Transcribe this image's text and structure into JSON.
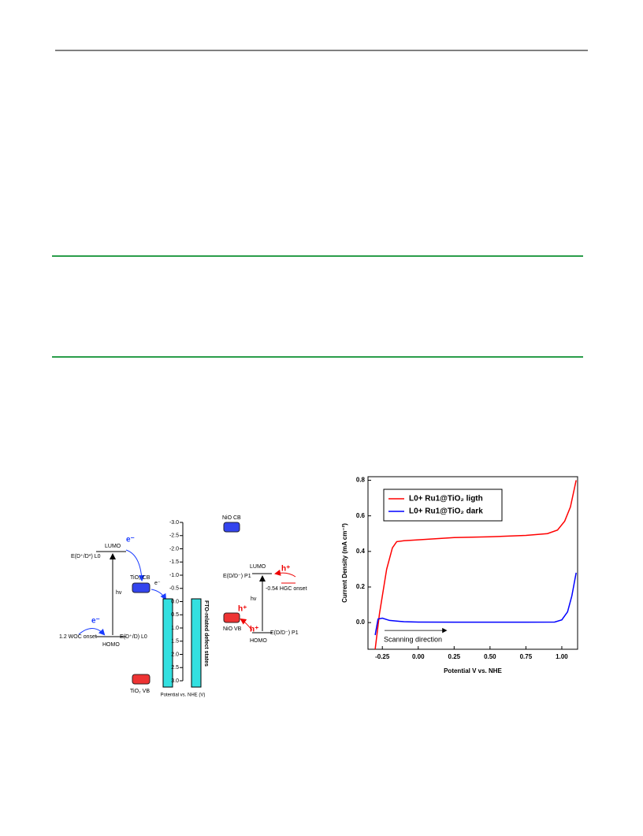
{
  "diagram": {
    "scale": {
      "ticks": [
        -3.0,
        -2.5,
        -2.0,
        -1.5,
        -1.0,
        -0.5,
        0.0,
        0.5,
        1.0,
        1.5,
        2.0,
        2.5,
        3.0
      ],
      "tick_labels": [
        "-3.0",
        "-2.5",
        "-2.0",
        "-1.5",
        "-1.0",
        "-0.5",
        "0.0",
        "0.5",
        "1.0",
        "1.5",
        "2.0",
        "2.5",
        "3.0"
      ],
      "lim": [
        -3.0,
        3.0
      ],
      "label": "Potential vs. NHE (V)"
    },
    "labels": [
      "E(D⁺/D*) L0",
      "LUMO",
      "hv",
      "HOMO",
      "E(D⁺/D) L0",
      "1.2 WOC onset",
      "e⁻",
      "e⁻",
      "TiO₂ CB",
      "e⁻",
      "TiO₂ VB",
      "NiO CB",
      "NiO VB",
      "h⁺",
      "h⁺",
      "h⁺",
      "LUMO",
      "E(D/D⁻) P1",
      "-0.54 HGC onset",
      "hv",
      "E(D/D⁻) P1",
      "HOMO",
      "FTO-related defect states"
    ]
  },
  "chart_data": {
    "type": "line",
    "xlabel": "Potential V vs. NHE",
    "ylabel": "Current Density (mA cm⁻²)",
    "xlim": [
      -0.35,
      1.11
    ],
    "ylim": [
      -0.15,
      0.82
    ],
    "xticks": [
      {
        "value": -0.25,
        "label": "-0.25"
      },
      {
        "value": 0,
        "label": "0.00"
      },
      {
        "value": 0.25,
        "label": "0.25"
      },
      {
        "value": 0.5,
        "label": "0.50"
      },
      {
        "value": 0.75,
        "label": "0.75"
      },
      {
        "value": 1,
        "label": "1.00"
      }
    ],
    "yticks": [
      {
        "value": 0,
        "label": "0.0"
      },
      {
        "value": 0.2,
        "label": "0.2"
      },
      {
        "value": 0.4,
        "label": "0.4"
      },
      {
        "value": 0.6,
        "label": "0.6"
      },
      {
        "value": 0.8,
        "label": "0.8"
      }
    ],
    "annotation": "Scanning direction",
    "legend": "upper left",
    "series": [
      {
        "name": "L0+ Ru1@TiO₂ ligth",
        "color": "#ff0000",
        "x": [
          -0.3,
          -0.27,
          -0.22,
          -0.18,
          -0.15,
          -0.1,
          0,
          0.25,
          0.5,
          0.75,
          0.9,
          0.97,
          1.02,
          1.06,
          1.1
        ],
        "values": [
          -0.15,
          0.05,
          0.3,
          0.42,
          0.455,
          0.46,
          0.465,
          0.478,
          0.482,
          0.49,
          0.5,
          0.52,
          0.57,
          0.65,
          0.8
        ]
      },
      {
        "name": "L0+ Ru1@TiO₂ dark",
        "color": "#0000ff",
        "x": [
          -0.3,
          -0.28,
          -0.25,
          -0.2,
          -0.1,
          0,
          0.25,
          0.5,
          0.75,
          0.95,
          1.0,
          1.04,
          1.07,
          1.1
        ],
        "values": [
          -0.07,
          0.02,
          0.025,
          0.012,
          0.005,
          0.003,
          0.002,
          0.002,
          0.002,
          0.003,
          0.015,
          0.06,
          0.15,
          0.28
        ]
      }
    ]
  }
}
